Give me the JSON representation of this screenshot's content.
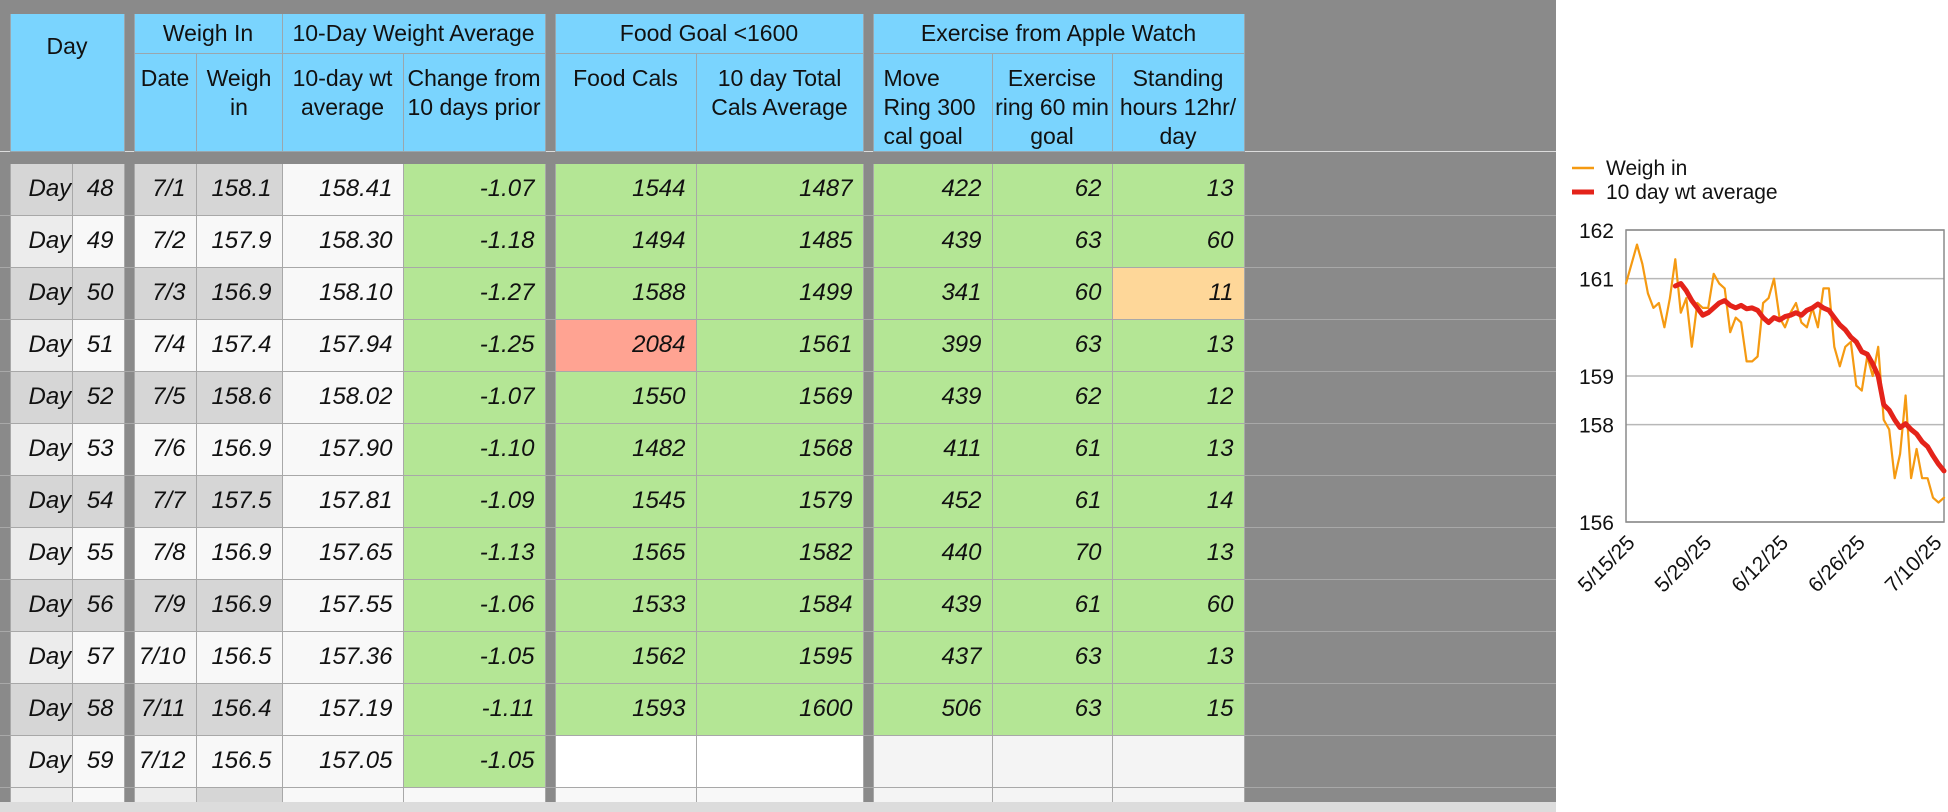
{
  "headers": {
    "day": "Day",
    "weigh_in_group": "Weigh In",
    "avg_group": "10-Day Weight Average",
    "food_group": "Food Goal <1600",
    "exercise_group": "Exercise from Apple Watch",
    "date": "Date",
    "weigh_in": "Weigh in",
    "wt_avg": "10-day wt average",
    "change": "Change from 10 days prior",
    "food_cals": "Food Cals",
    "total_cals": "10 day Total Cals Average",
    "move": "Move Ring 300 cal goal",
    "exercise": "Exercise ring 60 min goal",
    "standing": "Standing hours 12hr/ day"
  },
  "rows": [
    {
      "day_label": "Day",
      "day": "48",
      "date": "7/1",
      "weigh": "158.1",
      "avg": "158.41",
      "change": "-1.07",
      "food": "1544",
      "total": "1487",
      "move": "422",
      "exercise": "62",
      "stand": "13"
    },
    {
      "day_label": "Day",
      "day": "49",
      "date": "7/2",
      "weigh": "157.9",
      "avg": "158.30",
      "change": "-1.18",
      "food": "1494",
      "total": "1485",
      "move": "439",
      "exercise": "63",
      "stand": "60"
    },
    {
      "day_label": "Day",
      "day": "50",
      "date": "7/3",
      "weigh": "156.9",
      "avg": "158.10",
      "change": "-1.27",
      "food": "1588",
      "total": "1499",
      "move": "341",
      "exercise": "60",
      "stand": "11"
    },
    {
      "day_label": "Day",
      "day": "51",
      "date": "7/4",
      "weigh": "157.4",
      "avg": "157.94",
      "change": "-1.25",
      "food": "2084",
      "total": "1561",
      "move": "399",
      "exercise": "63",
      "stand": "13"
    },
    {
      "day_label": "Day",
      "day": "52",
      "date": "7/5",
      "weigh": "158.6",
      "avg": "158.02",
      "change": "-1.07",
      "food": "1550",
      "total": "1569",
      "move": "439",
      "exercise": "62",
      "stand": "12"
    },
    {
      "day_label": "Day",
      "day": "53",
      "date": "7/6",
      "weigh": "156.9",
      "avg": "157.90",
      "change": "-1.10",
      "food": "1482",
      "total": "1568",
      "move": "411",
      "exercise": "61",
      "stand": "13"
    },
    {
      "day_label": "Day",
      "day": "54",
      "date": "7/7",
      "weigh": "157.5",
      "avg": "157.81",
      "change": "-1.09",
      "food": "1545",
      "total": "1579",
      "move": "452",
      "exercise": "61",
      "stand": "14"
    },
    {
      "day_label": "Day",
      "day": "55",
      "date": "7/8",
      "weigh": "156.9",
      "avg": "157.65",
      "change": "-1.13",
      "food": "1565",
      "total": "1582",
      "move": "440",
      "exercise": "70",
      "stand": "13"
    },
    {
      "day_label": "Day",
      "day": "56",
      "date": "7/9",
      "weigh": "156.9",
      "avg": "157.55",
      "change": "-1.06",
      "food": "1533",
      "total": "1584",
      "move": "439",
      "exercise": "61",
      "stand": "60"
    },
    {
      "day_label": "Day",
      "day": "57",
      "date": "7/10",
      "weigh": "156.5",
      "avg": "157.36",
      "change": "-1.05",
      "food": "1562",
      "total": "1595",
      "move": "437",
      "exercise": "63",
      "stand": "13"
    },
    {
      "day_label": "Day",
      "day": "58",
      "date": "7/11",
      "weigh": "156.4",
      "avg": "157.19",
      "change": "-1.11",
      "food": "1593",
      "total": "1600",
      "move": "506",
      "exercise": "63",
      "stand": "15"
    },
    {
      "day_label": "Day",
      "day": "59",
      "date": "7/12",
      "weigh": "156.5",
      "avg": "157.05",
      "change": "-1.05",
      "food": "",
      "total": "",
      "move": "",
      "exercise": "",
      "stand": ""
    }
  ],
  "colors": {
    "header": "#7ad4fe",
    "good": "#b4e695",
    "over_goal": "#ffa392",
    "under_goal": "#fed799",
    "weigh_line": "#f59a12",
    "avg_line": "#e4231a"
  },
  "chart_data": {
    "type": "line",
    "ylim": [
      156,
      162
    ],
    "y_ticks": [
      "156",
      "158",
      "159",
      "161",
      "162"
    ],
    "x_ticks": [
      "5/15/25",
      "5/29/25",
      "6/12/25",
      "6/26/25",
      "7/10/25"
    ],
    "x_range": [
      "5/15/25",
      "7/12/25"
    ],
    "grid": true,
    "legend": "top",
    "series": [
      {
        "name": "Weigh in",
        "color": "#f59a12",
        "x": [
          "5/15/25",
          "5/16/25",
          "5/17/25",
          "5/18/25",
          "5/19/25",
          "5/20/25",
          "5/21/25",
          "5/22/25",
          "5/23/25",
          "5/24/25",
          "5/25/25",
          "5/26/25",
          "5/27/25",
          "5/28/25",
          "5/29/25",
          "5/30/25",
          "5/31/25",
          "6/1/25",
          "6/2/25",
          "6/3/25",
          "6/4/25",
          "6/5/25",
          "6/6/25",
          "6/7/25",
          "6/8/25",
          "6/9/25",
          "6/10/25",
          "6/11/25",
          "6/12/25",
          "6/13/25",
          "6/14/25",
          "6/15/25",
          "6/16/25",
          "6/17/25",
          "6/18/25",
          "6/19/25",
          "6/20/25",
          "6/21/25",
          "6/22/25",
          "6/23/25",
          "6/24/25",
          "6/25/25",
          "6/26/25",
          "6/27/25",
          "6/28/25",
          "6/29/25",
          "6/30/25",
          "7/1/25",
          "7/2/25",
          "7/3/25",
          "7/4/25",
          "7/5/25",
          "7/6/25",
          "7/7/25",
          "7/8/25",
          "7/9/25",
          "7/10/25",
          "7/11/25",
          "7/12/25"
        ],
        "values": [
          160.9,
          161.3,
          161.7,
          161.3,
          160.7,
          160.4,
          160.5,
          160.0,
          160.6,
          161.4,
          160.3,
          160.6,
          159.6,
          160.5,
          160.4,
          160.4,
          161.1,
          160.9,
          160.8,
          159.9,
          160.2,
          160.1,
          159.3,
          159.3,
          159.4,
          160.5,
          160.6,
          161.0,
          160.2,
          160.0,
          160.3,
          160.5,
          160.1,
          160.0,
          160.4,
          160.0,
          160.8,
          160.8,
          159.6,
          159.2,
          159.6,
          159.7,
          158.8,
          158.7,
          159.4,
          159.0,
          159.6,
          158.1,
          157.9,
          156.9,
          157.4,
          158.6,
          156.9,
          157.5,
          156.9,
          156.9,
          156.5,
          156.4,
          156.5
        ]
      },
      {
        "name": "10 day wt average",
        "color": "#e4231a",
        "x": [
          "5/24/25",
          "5/25/25",
          "5/26/25",
          "5/27/25",
          "5/28/25",
          "5/29/25",
          "5/30/25",
          "5/31/25",
          "6/1/25",
          "6/2/25",
          "6/3/25",
          "6/4/25",
          "6/5/25",
          "6/6/25",
          "6/7/25",
          "6/8/25",
          "6/9/25",
          "6/10/25",
          "6/11/25",
          "6/12/25",
          "6/13/25",
          "6/14/25",
          "6/15/25",
          "6/16/25",
          "6/17/25",
          "6/18/25",
          "6/19/25",
          "6/20/25",
          "6/21/25",
          "6/22/25",
          "6/23/25",
          "6/24/25",
          "6/25/25",
          "6/26/25",
          "6/27/25",
          "6/28/25",
          "6/29/25",
          "6/30/25",
          "7/1/25",
          "7/2/25",
          "7/3/25",
          "7/4/25",
          "7/5/25",
          "7/6/25",
          "7/7/25",
          "7/8/25",
          "7/9/25",
          "7/10/25",
          "7/11/25",
          "7/12/25"
        ],
        "values": [
          160.85,
          160.9,
          160.75,
          160.55,
          160.4,
          160.25,
          160.3,
          160.4,
          160.5,
          160.55,
          160.45,
          160.4,
          160.45,
          160.38,
          160.4,
          160.35,
          160.2,
          160.1,
          160.2,
          160.15,
          160.22,
          160.25,
          160.3,
          160.25,
          160.35,
          160.4,
          160.48,
          160.4,
          160.35,
          160.2,
          160.05,
          159.95,
          159.8,
          159.7,
          159.5,
          159.45,
          159.25,
          159.0,
          158.41,
          158.3,
          158.1,
          157.94,
          158.02,
          157.9,
          157.81,
          157.65,
          157.55,
          157.36,
          157.19,
          157.05
        ]
      }
    ]
  }
}
